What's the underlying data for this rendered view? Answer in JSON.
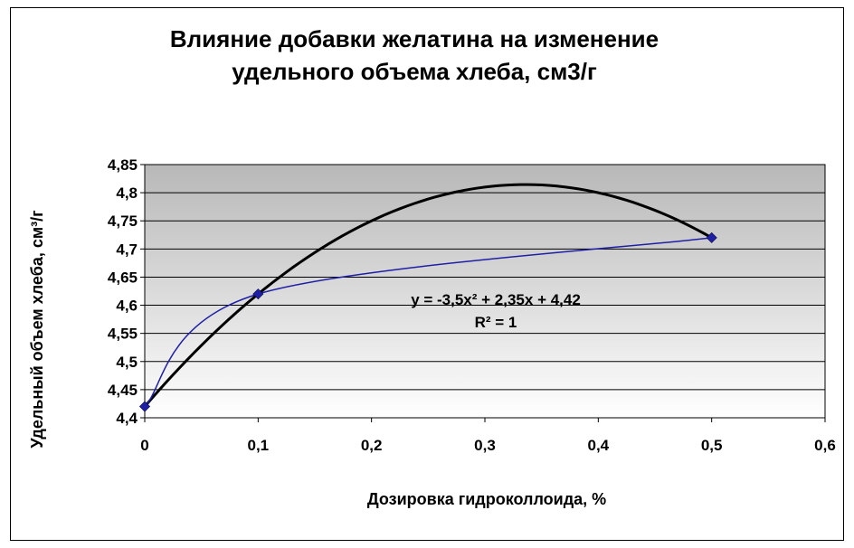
{
  "chart_data": {
    "type": "scatter",
    "title_lines": [
      "Влияние добавки желатина на изменение",
      "удельного объема хлеба, см3/г"
    ],
    "xlabel": "Дозировка гидроколлоида, %",
    "ylabel": "Удельный объем хлеба, см³/г",
    "xlim": [
      0,
      0.6
    ],
    "ylim": [
      4.4,
      4.85
    ],
    "x_ticks": [
      0,
      0.1,
      0.2,
      0.3,
      0.4,
      0.5,
      0.6
    ],
    "x_tick_labels": [
      "0",
      "0,1",
      "0,2",
      "0,3",
      "0,4",
      "0,5",
      "0,6"
    ],
    "y_ticks": [
      4.4,
      4.45,
      4.5,
      4.55,
      4.6,
      4.65,
      4.7,
      4.75,
      4.8,
      4.85
    ],
    "y_tick_labels": [
      "4,4",
      "4,45",
      "4,5",
      "4,55",
      "4,6",
      "4,65",
      "4,7",
      "4,75",
      "4,8",
      "4,85"
    ],
    "grid": true,
    "series": [
      {
        "x": [
          0,
          0.1,
          0.5
        ],
        "y": [
          4.42,
          4.62,
          4.72
        ],
        "color": "#1f1fa6"
      }
    ],
    "trendline": {
      "type": "polynomial",
      "coefficients": [
        -3.5,
        2.35,
        4.42
      ],
      "equation": "y = -3,5x² + 2,35x + 4,42",
      "r_squared": "R² = 1",
      "color": "#000000"
    }
  }
}
